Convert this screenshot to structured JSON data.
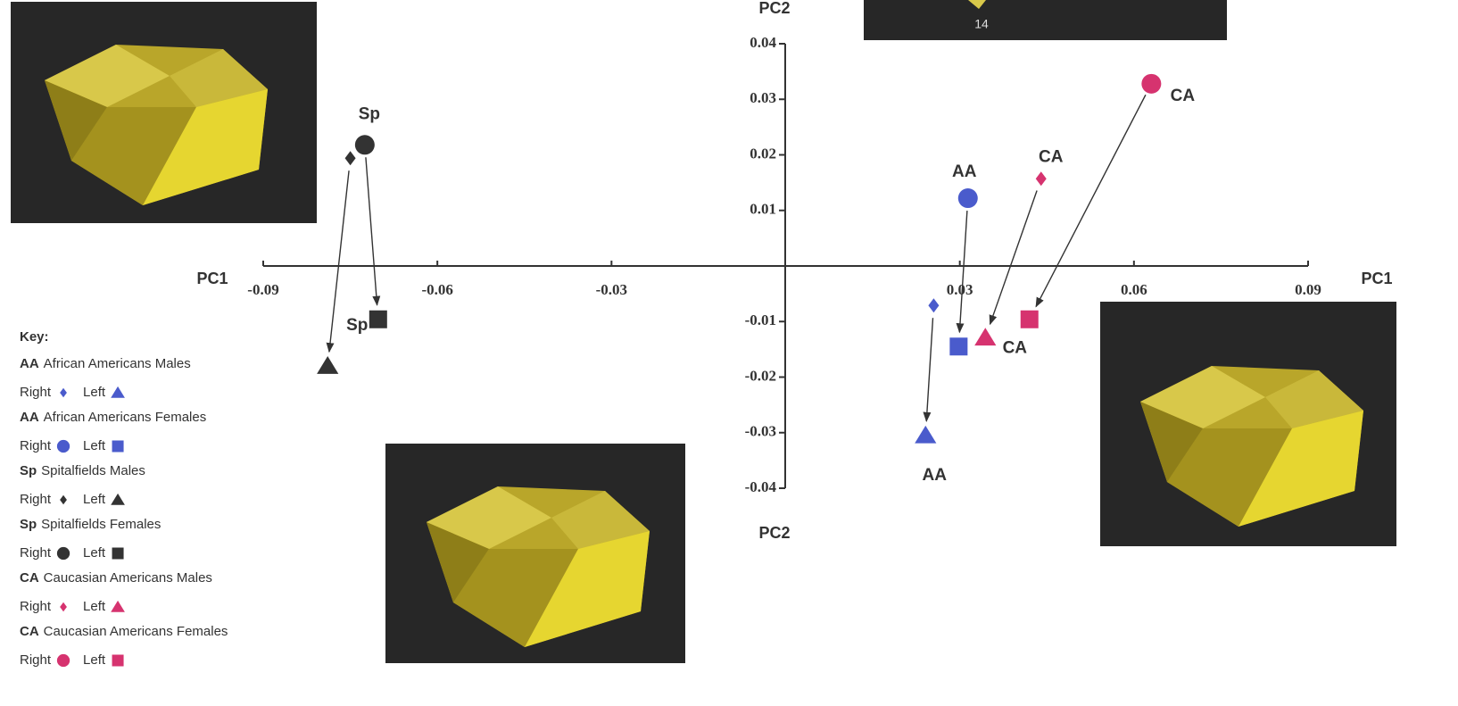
{
  "chart_data": {
    "type": "scatter",
    "x_label": "PC1",
    "y_label": "PC2",
    "xlim": [
      -0.09,
      0.09
    ],
    "ylim": [
      -0.04,
      0.04
    ],
    "xticks": [
      -0.09,
      -0.06,
      -0.03,
      0.03,
      0.06,
      0.09
    ],
    "yticks": [
      0.04,
      0.03,
      0.02,
      0.01,
      -0.01,
      -0.02,
      -0.03,
      -0.04
    ],
    "legend_title": "Key:",
    "image_caption": "14",
    "groups": [
      {
        "abbr": "AA",
        "label": "African Americans Males",
        "color": "#4a5bcc",
        "series": [
          {
            "name": "Right",
            "marker": "diamond",
            "x": [
              0.0255
            ],
            "y": [
              -0.0071
            ]
          },
          {
            "name": "Left",
            "marker": "triangle",
            "x": [
              0.0241
            ],
            "y": [
              -0.0305
            ],
            "label": "AA"
          }
        ]
      },
      {
        "abbr": "AA",
        "label": "African Americans Females",
        "color": "#4a5bcc",
        "series": [
          {
            "name": "Right",
            "marker": "circle",
            "x": [
              0.0314
            ],
            "y": [
              0.0122
            ],
            "label": "AA"
          },
          {
            "name": "Left",
            "marker": "square",
            "x": [
              0.0298
            ],
            "y": [
              -0.0145
            ]
          }
        ]
      },
      {
        "abbr": "Sp",
        "label": "Spitalfields Males",
        "color": "#333333",
        "series": [
          {
            "name": "Right",
            "marker": "diamond",
            "x": [
              -0.075
            ],
            "y": [
              0.0194
            ]
          },
          {
            "name": "Left",
            "marker": "triangle",
            "x": [
              -0.0789
            ],
            "y": [
              -0.018
            ],
            "label": "Sp"
          }
        ]
      },
      {
        "abbr": "Sp",
        "label": "Spitalfields Females",
        "color": "#333333",
        "series": [
          {
            "name": "Right",
            "marker": "circle",
            "x": [
              -0.0725
            ],
            "y": [
              0.0218
            ],
            "label": "Sp"
          },
          {
            "name": "Left",
            "marker": "square",
            "x": [
              -0.0702
            ],
            "y": [
              -0.0096
            ]
          }
        ]
      },
      {
        "abbr": "CA",
        "label": "Caucasian Americans Males",
        "color": "#d6336f",
        "series": [
          {
            "name": "Right",
            "marker": "diamond",
            "x": [
              0.044
            ],
            "y": [
              0.0157
            ],
            "label": "CA"
          },
          {
            "name": "Left",
            "marker": "triangle",
            "x": [
              0.0344
            ],
            "y": [
              -0.0129
            ],
            "label": "CA"
          }
        ]
      },
      {
        "abbr": "CA",
        "label": "Caucasian Americans Females",
        "color": "#d6336f",
        "series": [
          {
            "name": "Right",
            "marker": "circle",
            "x": [
              0.063
            ],
            "y": [
              0.0328
            ],
            "label": "CA"
          },
          {
            "name": "Left",
            "marker": "square",
            "x": [
              0.042
            ],
            "y": [
              -0.0096
            ]
          }
        ]
      }
    ]
  }
}
